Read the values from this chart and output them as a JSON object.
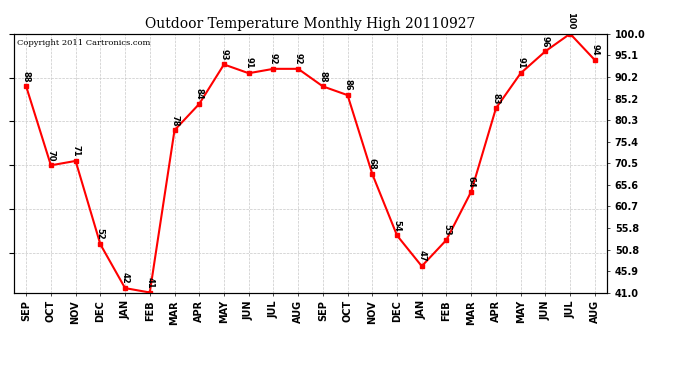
{
  "months": [
    "SEP",
    "OCT",
    "NOV",
    "DEC",
    "JAN",
    "FEB",
    "MAR",
    "APR",
    "MAY",
    "JUN",
    "JUL",
    "AUG",
    "SEP",
    "OCT",
    "NOV",
    "DEC",
    "JAN",
    "FEB",
    "MAR",
    "APR",
    "MAY",
    "JUN",
    "JUL",
    "AUG"
  ],
  "values": [
    88,
    70,
    71,
    52,
    42,
    41,
    78,
    84,
    93,
    91,
    92,
    92,
    88,
    86,
    68,
    54,
    47,
    53,
    64,
    83,
    91,
    96,
    100,
    94
  ],
  "line_color": "#ff0000",
  "marker_color": "#ff0000",
  "title": "Outdoor Temperature Monthly High 20110927",
  "copyright_text": "Copyright 2011 Cartronics.com",
  "background_color": "#ffffff",
  "grid_color": "#c8c8c8",
  "ylim": [
    41.0,
    100.0
  ],
  "yticks_right": [
    100.0,
    95.1,
    90.2,
    85.2,
    80.3,
    75.4,
    70.5,
    65.6,
    60.7,
    55.8,
    50.8,
    45.9,
    41.0
  ]
}
